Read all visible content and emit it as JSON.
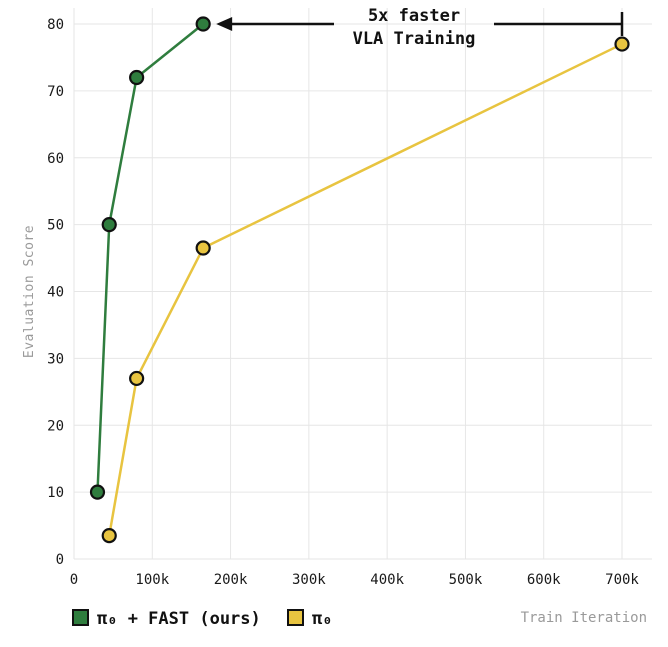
{
  "chart_data": {
    "type": "line",
    "xlabel": "Train Iteration",
    "ylabel": "Evaluation Score",
    "xlim": [
      0,
      700000
    ],
    "ylim": [
      0,
      80
    ],
    "x_ticks": [
      0,
      100000,
      200000,
      300000,
      400000,
      500000,
      600000,
      700000
    ],
    "x_tick_labels": [
      "0",
      "100k",
      "200k",
      "300k",
      "400k",
      "500k",
      "600k",
      "700k"
    ],
    "y_ticks": [
      0,
      10,
      20,
      30,
      40,
      50,
      60,
      70,
      80
    ],
    "y_tick_labels": [
      "0",
      "10",
      "20",
      "30",
      "40",
      "50",
      "60",
      "70",
      "80"
    ],
    "grid": true,
    "legend_position": "bottom-left",
    "series": [
      {
        "name": "π₀ + FAST (ours)",
        "color": "#2f7d3e",
        "x": [
          30000,
          45000,
          80000,
          165000
        ],
        "y": [
          10,
          50,
          72,
          80
        ]
      },
      {
        "name": "π₀",
        "color": "#e8c440",
        "x": [
          45000,
          80000,
          165000,
          700000
        ],
        "y": [
          3.5,
          27,
          46.5,
          77
        ]
      }
    ],
    "annotation": {
      "lines": [
        "5x faster",
        "VLA Training"
      ],
      "from_x": 700000,
      "to_x": 165000,
      "y": 80
    }
  }
}
